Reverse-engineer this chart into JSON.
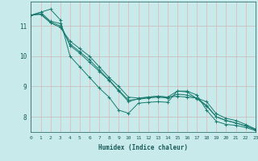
{
  "xlabel": "Humidex (Indice chaleur)",
  "bg_color": "#c8eaea",
  "line_color": "#1a7a6e",
  "marker_color": "#1a7a6e",
  "grid_color_h": "#d8b8b8",
  "grid_color_v": "#e8c8c8",
  "xlim": [
    0,
    23
  ],
  "ylim": [
    7.5,
    11.8
  ],
  "yticks": [
    8,
    9,
    10,
    11
  ],
  "xticks": [
    0,
    1,
    2,
    3,
    4,
    5,
    6,
    7,
    8,
    9,
    10,
    11,
    12,
    13,
    14,
    15,
    16,
    17,
    18,
    19,
    20,
    21,
    22,
    23
  ],
  "series": [
    {
      "x": [
        0,
        1,
        2,
        3,
        4,
        5,
        6,
        7,
        8,
        9,
        10,
        11,
        12,
        13,
        14,
        15,
        16,
        17,
        18,
        19,
        20,
        21,
        22,
        23
      ],
      "y": [
        11.35,
        11.45,
        11.55,
        11.2,
        10.0,
        9.65,
        9.3,
        8.95,
        8.65,
        8.22,
        8.12,
        8.45,
        8.48,
        8.5,
        8.48,
        8.85,
        8.85,
        8.72,
        8.22,
        7.85,
        7.75,
        7.72,
        7.65,
        7.55
      ]
    },
    {
      "x": [
        0,
        1,
        2,
        3,
        4,
        5,
        6,
        7,
        8,
        9,
        10,
        11,
        12,
        13,
        14,
        15,
        16,
        17,
        18,
        19,
        20,
        21,
        22,
        23
      ],
      "y": [
        11.35,
        11.45,
        11.15,
        11.08,
        10.35,
        10.1,
        9.8,
        9.5,
        9.2,
        8.85,
        8.5,
        8.6,
        8.65,
        8.68,
        8.65,
        8.85,
        8.82,
        8.6,
        8.35,
        8.0,
        7.88,
        7.8,
        7.7,
        7.58
      ]
    },
    {
      "x": [
        0,
        1,
        2,
        3,
        4,
        5,
        6,
        7,
        8,
        9,
        10,
        11,
        12,
        13,
        14,
        15,
        16,
        17,
        18,
        19,
        20,
        21,
        22,
        23
      ],
      "y": [
        11.35,
        11.38,
        11.1,
        10.95,
        10.5,
        10.25,
        10.0,
        9.65,
        9.3,
        9.0,
        8.65,
        8.62,
        8.65,
        8.68,
        8.65,
        8.68,
        8.65,
        8.62,
        8.5,
        8.1,
        7.95,
        7.88,
        7.75,
        7.6
      ]
    },
    {
      "x": [
        0,
        1,
        2,
        3,
        4,
        5,
        6,
        7,
        8,
        9,
        10,
        11,
        12,
        13,
        14,
        15,
        16,
        17,
        18,
        19,
        20,
        21,
        22,
        23
      ],
      "y": [
        11.35,
        11.4,
        11.12,
        11.0,
        10.4,
        10.15,
        9.88,
        9.55,
        9.22,
        8.88,
        8.55,
        8.58,
        8.62,
        8.65,
        8.62,
        8.75,
        8.72,
        8.62,
        8.38,
        8.0,
        7.88,
        7.8,
        7.7,
        7.58
      ]
    }
  ]
}
